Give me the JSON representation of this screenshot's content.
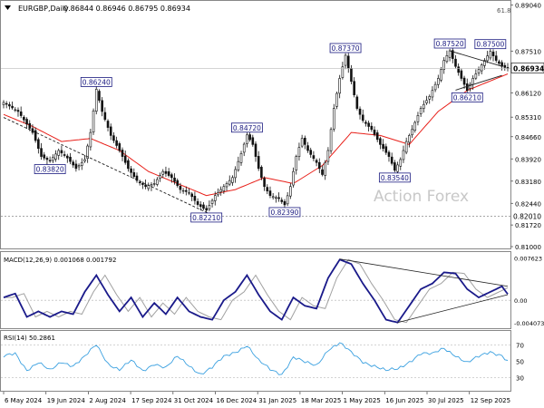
{
  "chart_data": [
    {
      "panel": "price",
      "type": "candlestick",
      "title": "EURGBP,Daily",
      "quote": "0.86844 0.86946 0.86795 0.86934",
      "watermark": "Action Forex",
      "corner_label": "61.8",
      "ylim": [
        0.81,
        0.8909
      ],
      "y_ticks": [
        "0.89040",
        "0.87510",
        "0.86120",
        "0.85310",
        "0.84660",
        "0.83920",
        "0.83180",
        "0.82440",
        "0.81720",
        "0.81000"
      ],
      "current_price": "0.86934",
      "support_level": {
        "value": 0.8201,
        "label": "0.82010"
      },
      "x_dates": [
        "6 May 2024",
        "19 Jun 2024",
        "2 Aug 2024",
        "17 Sep 2024",
        "31 Oct 2024",
        "16 Dec 2024",
        "31 Jan 2025",
        "18 Mar 2025",
        "1 May 2025",
        "16 Jun 2025",
        "30 Jul 2025",
        "12 Sep 2025"
      ],
      "anchors": [
        [
          0,
          0.858
        ],
        [
          5,
          0.855
        ],
        [
          10,
          0.848
        ],
        [
          13,
          0.84
        ],
        [
          16,
          0.8385
        ],
        [
          19,
          0.842
        ],
        [
          22,
          0.8395
        ],
        [
          25,
          0.836
        ],
        [
          28,
          0.839
        ],
        [
          30,
          0.848
        ],
        [
          32,
          0.8624
        ],
        [
          34,
          0.855
        ],
        [
          37,
          0.847
        ],
        [
          40,
          0.842
        ],
        [
          43,
          0.836
        ],
        [
          46,
          0.832
        ],
        [
          49,
          0.83
        ],
        [
          52,
          0.831
        ],
        [
          55,
          0.835
        ],
        [
          58,
          0.833
        ],
        [
          61,
          0.829
        ],
        [
          64,
          0.828
        ],
        [
          67,
          0.824
        ],
        [
          70,
          0.8221
        ],
        [
          73,
          0.827
        ],
        [
          76,
          0.83
        ],
        [
          79,
          0.833
        ],
        [
          82,
          0.841
        ],
        [
          84,
          0.8472
        ],
        [
          86,
          0.844
        ],
        [
          88,
          0.836
        ],
        [
          90,
          0.83
        ],
        [
          92,
          0.827
        ],
        [
          95,
          0.826
        ],
        [
          97,
          0.8239
        ],
        [
          99,
          0.83
        ],
        [
          101,
          0.84
        ],
        [
          103,
          0.846
        ],
        [
          105,
          0.842
        ],
        [
          108,
          0.838
        ],
        [
          110,
          0.834
        ],
        [
          112,
          0.842
        ],
        [
          114,
          0.856
        ],
        [
          116,
          0.866
        ],
        [
          118,
          0.8737
        ],
        [
          120,
          0.865
        ],
        [
          122,
          0.856
        ],
        [
          124,
          0.852
        ],
        [
          127,
          0.849
        ],
        [
          130,
          0.844
        ],
        [
          133,
          0.84
        ],
        [
          135,
          0.8354
        ],
        [
          137,
          0.839
        ],
        [
          139,
          0.845
        ],
        [
          141,
          0.849
        ],
        [
          144,
          0.856
        ],
        [
          147,
          0.86
        ],
        [
          150,
          0.866
        ],
        [
          152,
          0.872
        ],
        [
          154,
          0.8752
        ],
        [
          156,
          0.87
        ],
        [
          158,
          0.866
        ],
        [
          160,
          0.862
        ],
        [
          162,
          0.866
        ],
        [
          164,
          0.869
        ],
        [
          166,
          0.872
        ],
        [
          168,
          0.875
        ],
        [
          170,
          0.872
        ],
        [
          172,
          0.87
        ],
        [
          174,
          0.8693
        ]
      ],
      "moving_average": [
        [
          0,
          0.854
        ],
        [
          10,
          0.85
        ],
        [
          20,
          0.845
        ],
        [
          30,
          0.846
        ],
        [
          40,
          0.842
        ],
        [
          50,
          0.835
        ],
        [
          60,
          0.831
        ],
        [
          70,
          0.827
        ],
        [
          80,
          0.829
        ],
        [
          90,
          0.833
        ],
        [
          100,
          0.831
        ],
        [
          110,
          0.837
        ],
        [
          120,
          0.848
        ],
        [
          130,
          0.847
        ],
        [
          140,
          0.844
        ],
        [
          150,
          0.855
        ],
        [
          160,
          0.862
        ],
        [
          174,
          0.8675
        ]
      ],
      "trendlines": [
        {
          "from": [
            0,
            0.853
          ],
          "to": [
            72,
            0.8205
          ]
        },
        {
          "from": [
            154,
            0.8752
          ],
          "to": [
            172,
            0.87
          ]
        },
        {
          "from": [
            156,
            0.8621
          ],
          "to": [
            172,
            0.867
          ]
        }
      ],
      "labels": [
        {
          "text": "0.86240",
          "i": 32,
          "v": 0.8624,
          "pos": "above"
        },
        {
          "text": "0.83820",
          "i": 16,
          "v": 0.8382,
          "pos": "below"
        },
        {
          "text": "0.82210",
          "i": 70,
          "v": 0.8221,
          "pos": "below"
        },
        {
          "text": "0.84720",
          "i": 84,
          "v": 0.8472,
          "pos": "above"
        },
        {
          "text": "0.82390",
          "i": 97,
          "v": 0.8239,
          "pos": "below"
        },
        {
          "text": "0.87370",
          "i": 118,
          "v": 0.8737,
          "pos": "above"
        },
        {
          "text": "0.83540",
          "i": 135,
          "v": 0.8354,
          "pos": "below"
        },
        {
          "text": "0.87520",
          "i": 154,
          "v": 0.8752,
          "pos": "above"
        },
        {
          "text": "0.87500",
          "i": 168,
          "v": 0.875,
          "pos": "above"
        },
        {
          "text": "0.86210",
          "i": 160,
          "v": 0.8621,
          "pos": "below"
        }
      ],
      "colors": {
        "candle": "#111111",
        "moving_average": "#e8201a",
        "label_border": "#1a1a80",
        "label_bg": "#ffffff",
        "grid_level": "#999999",
        "watermark": "#c8c8c8"
      }
    },
    {
      "panel": "macd",
      "type": "line",
      "title": "MACD(12,26,9) 0.001068 0.001792",
      "ylim": [
        -0.0047,
        0.008
      ],
      "y_ticks": [
        "0.007623",
        "0.00",
        "-0.004073"
      ],
      "anchors": [
        [
          0,
          0.0005
        ],
        [
          4,
          0.0012
        ],
        [
          8,
          -0.003
        ],
        [
          12,
          -0.002
        ],
        [
          16,
          -0.003
        ],
        [
          20,
          -0.002
        ],
        [
          24,
          -0.0025
        ],
        [
          28,
          0.0015
        ],
        [
          32,
          0.0045
        ],
        [
          36,
          0.001
        ],
        [
          40,
          -0.002
        ],
        [
          44,
          0.0005
        ],
        [
          48,
          -0.003
        ],
        [
          52,
          -0.0005
        ],
        [
          56,
          -0.0025
        ],
        [
          60,
          0.0005
        ],
        [
          64,
          -0.002
        ],
        [
          68,
          -0.003
        ],
        [
          72,
          -0.0035
        ],
        [
          76,
          0.0
        ],
        [
          80,
          0.0015
        ],
        [
          84,
          0.0045
        ],
        [
          88,
          0.001
        ],
        [
          92,
          -0.002
        ],
        [
          96,
          -0.0035
        ],
        [
          100,
          0.0005
        ],
        [
          104,
          -0.001
        ],
        [
          108,
          -0.0015
        ],
        [
          112,
          0.004
        ],
        [
          116,
          0.0073
        ],
        [
          120,
          0.0065
        ],
        [
          124,
          0.003
        ],
        [
          128,
          0.0
        ],
        [
          132,
          -0.0035
        ],
        [
          136,
          -0.004
        ],
        [
          140,
          -0.001
        ],
        [
          144,
          0.002
        ],
        [
          148,
          0.003
        ],
        [
          152,
          0.005
        ],
        [
          156,
          0.0048
        ],
        [
          160,
          0.002
        ],
        [
          164,
          0.0005
        ],
        [
          168,
          0.0015
        ],
        [
          172,
          0.0025
        ],
        [
          174,
          0.0011
        ]
      ],
      "signal_lag": 3,
      "trendlines": [
        {
          "from": [
            116,
            0.0074
          ],
          "to": [
            174,
            0.0025
          ]
        },
        {
          "from": [
            136,
            -0.004
          ],
          "to": [
            174,
            0.001
          ]
        }
      ],
      "colors": {
        "macd": "#1a1a8a",
        "signal": "#a0a0a0",
        "zero": "#999999",
        "trendline": "#222222"
      }
    },
    {
      "panel": "rsi",
      "type": "line",
      "title": "RSI(14) 50.2861",
      "ylim": [
        15,
        85
      ],
      "y_ticks": [
        "70",
        "50",
        "30"
      ],
      "levels": [
        70,
        30
      ],
      "anchors": [
        [
          0,
          55
        ],
        [
          4,
          60
        ],
        [
          8,
          40
        ],
        [
          12,
          48
        ],
        [
          16,
          38
        ],
        [
          20,
          50
        ],
        [
          24,
          45
        ],
        [
          28,
          55
        ],
        [
          32,
          70
        ],
        [
          36,
          48
        ],
        [
          40,
          40
        ],
        [
          44,
          50
        ],
        [
          48,
          38
        ],
        [
          52,
          48
        ],
        [
          56,
          42
        ],
        [
          60,
          55
        ],
        [
          64,
          45
        ],
        [
          68,
          35
        ],
        [
          72,
          42
        ],
        [
          76,
          55
        ],
        [
          80,
          62
        ],
        [
          84,
          70
        ],
        [
          88,
          50
        ],
        [
          92,
          40
        ],
        [
          96,
          35
        ],
        [
          100,
          55
        ],
        [
          104,
          48
        ],
        [
          108,
          45
        ],
        [
          112,
          65
        ],
        [
          116,
          72
        ],
        [
          120,
          60
        ],
        [
          124,
          50
        ],
        [
          128,
          45
        ],
        [
          132,
          38
        ],
        [
          136,
          40
        ],
        [
          140,
          50
        ],
        [
          144,
          60
        ],
        [
          148,
          58
        ],
        [
          152,
          66
        ],
        [
          156,
          58
        ],
        [
          160,
          48
        ],
        [
          164,
          55
        ],
        [
          168,
          62
        ],
        [
          172,
          58
        ],
        [
          174,
          50
        ]
      ],
      "colors": {
        "rsi": "#3aa0e0",
        "level": "#aaaaaa"
      }
    }
  ]
}
